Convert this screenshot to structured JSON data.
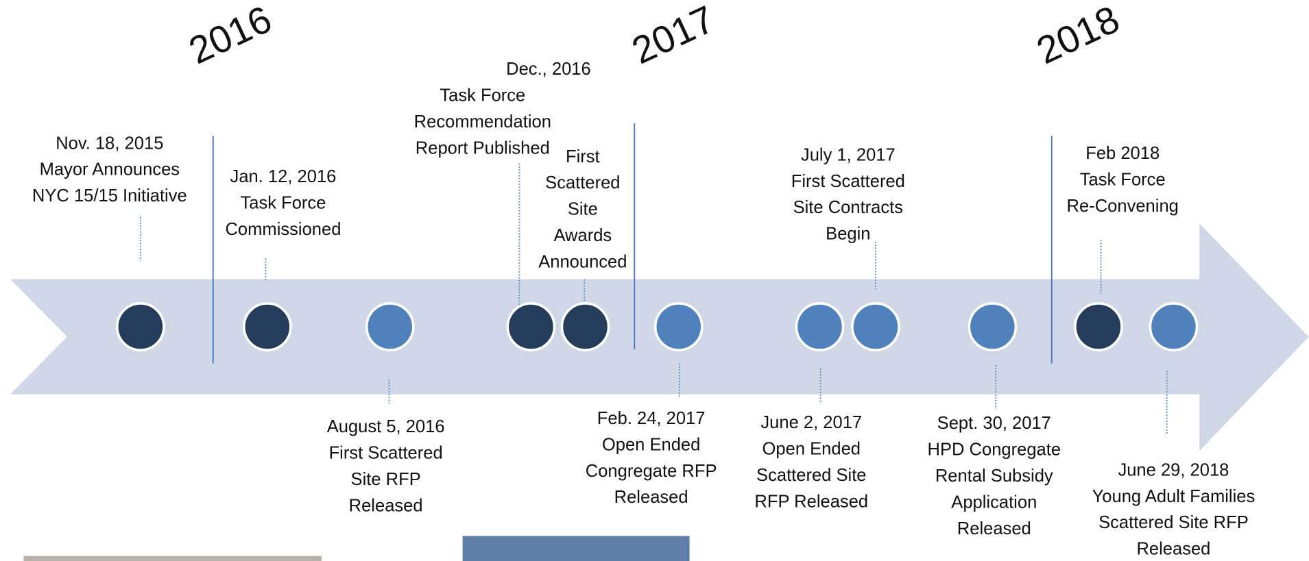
{
  "years": [
    "2016",
    "2017",
    "2018"
  ],
  "events": [
    {
      "lines": [
        "Nov. 18, 2015",
        "Mayor Announces",
        "NYC 15/15 Initiative"
      ]
    },
    {
      "lines": [
        "Jan. 12, 2016",
        "Task Force",
        "Commissioned"
      ]
    },
    {
      "lines": [
        "August 5, 2016",
        "First Scattered",
        "Site RFP",
        "Released"
      ]
    },
    {
      "lines": [
        "Dec., 2016",
        "Task Force",
        "Recommendation",
        "Report Published"
      ]
    },
    {
      "lines": [
        "First",
        "Scattered",
        "Site",
        "Awards",
        "Announced"
      ]
    },
    {
      "lines": [
        "Feb. 24, 2017",
        "Open Ended",
        "Congregate RFP",
        "Released"
      ]
    },
    {
      "lines": [
        "June 2, 2017",
        "Open Ended",
        "Scattered Site",
        "RFP Released"
      ]
    },
    {
      "lines": [
        "July 1, 2017",
        "First Scattered",
        "Site Contracts",
        "Begin"
      ]
    },
    {
      "lines": [
        "Sept. 30, 2017",
        "HPD Congregate",
        "Rental Subsidy",
        "Application",
        "Released"
      ]
    },
    {
      "lines": [
        "Feb 2018",
        "Task Force",
        "Re-Convening"
      ]
    },
    {
      "lines": [
        "June 29, 2018",
        "Young Adult Families",
        "Scattered Site RFP",
        "Released"
      ]
    }
  ]
}
